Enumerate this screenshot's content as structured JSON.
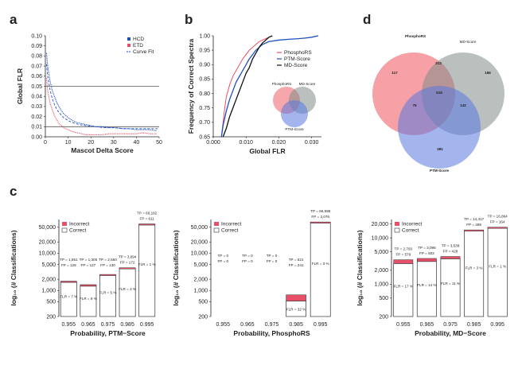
{
  "panel_labels": {
    "a": "a",
    "b": "b",
    "c": "c",
    "d": "d"
  },
  "colors": {
    "hcd": "#1f4fbf",
    "etd": "#e8506a",
    "red": "#e8506a",
    "phospho": "#f38a8f",
    "ptm": "#5a78e0",
    "md": "#7f8c88",
    "dark": "#222222"
  },
  "chart_data": [
    {
      "id": "a",
      "type": "line",
      "xlabel": "Mascot Delta Score",
      "ylabel": "Global FLR",
      "xlim": [
        0,
        50
      ],
      "ylim": [
        0,
        0.1
      ],
      "xticks": [
        0,
        10,
        20,
        30,
        40,
        50
      ],
      "yticks": [
        "0.00",
        "0.01",
        "0.02",
        "0.03",
        "0.04",
        "0.05",
        "0.06",
        "0.07",
        "0.08",
        "0.09",
        "0.10"
      ],
      "hlines": [
        0.05,
        0.01
      ],
      "legend": [
        "HCD",
        "ETD",
        "Curve Fit"
      ],
      "series": [
        {
          "name": "HCD",
          "x": [
            0.5,
            1,
            2,
            3,
            4,
            5,
            6,
            7,
            8,
            10,
            12,
            14,
            16,
            18,
            20,
            22,
            25,
            28,
            31,
            34,
            37,
            40,
            43,
            46,
            49
          ],
          "y": [
            0.083,
            0.07,
            0.056,
            0.046,
            0.04,
            0.034,
            0.03,
            0.026,
            0.023,
            0.019,
            0.016,
            0.014,
            0.013,
            0.012,
            0.011,
            0.01,
            0.01,
            0.009,
            0.009,
            0.008,
            0.008,
            0.007,
            0.007,
            0.007,
            0.006
          ]
        },
        {
          "name": "ETD",
          "x": [
            0.5,
            1,
            2,
            3,
            4,
            5,
            6,
            7,
            8,
            10,
            12,
            14,
            16,
            18,
            20,
            22,
            25,
            28,
            31,
            34,
            37,
            40,
            43,
            46,
            49
          ],
          "y": [
            0.058,
            0.046,
            0.034,
            0.027,
            0.021,
            0.017,
            0.013,
            0.011,
            0.009,
            0.007,
            0.005,
            0.004,
            0.003,
            0.002,
            0.002,
            0.002,
            0.002,
            0.003,
            0.003,
            0.003,
            0.003,
            0.003,
            0.004,
            0.003,
            0.003
          ]
        },
        {
          "name": "Curve Fit",
          "x": [
            0.5,
            1,
            2,
            3,
            4,
            5,
            6,
            8,
            10,
            12,
            15,
            18,
            22,
            26,
            30,
            35,
            40,
            45,
            50
          ],
          "y": [
            0.072,
            0.06,
            0.047,
            0.038,
            0.032,
            0.027,
            0.024,
            0.019,
            0.016,
            0.014,
            0.012,
            0.011,
            0.01,
            0.009,
            0.009,
            0.008,
            0.008,
            0.008,
            0.008
          ]
        }
      ]
    },
    {
      "id": "b",
      "type": "line",
      "xlabel": "Global FLR",
      "ylabel": "Frequency of Correct Spectra",
      "xlim": [
        0,
        0.033
      ],
      "ylim": [
        0.65,
        1.0
      ],
      "xticks": [
        "0.000",
        "0.010",
        "0.020",
        "0.030"
      ],
      "yticks": [
        "0.65",
        "0.70",
        "0.75",
        "0.80",
        "0.85",
        "0.90",
        "0.95",
        "1.00"
      ],
      "legend": [
        "PhosphoRS",
        "PTM-Score",
        "MD-Score"
      ],
      "series": [
        {
          "name": "PhosphoRS",
          "x": [
            0.0025,
            0.003,
            0.0035,
            0.004,
            0.005,
            0.006,
            0.007,
            0.008,
            0.009,
            0.01,
            0.011,
            0.012,
            0.013,
            0.014,
            0.015,
            0.016,
            0.017,
            0.018
          ],
          "y": [
            0.65,
            0.7,
            0.75,
            0.79,
            0.83,
            0.86,
            0.88,
            0.9,
            0.92,
            0.935,
            0.95,
            0.96,
            0.97,
            0.98,
            0.985,
            0.99,
            0.995,
            1.0
          ]
        },
        {
          "name": "PTM-Score",
          "x": [
            0.0025,
            0.003,
            0.004,
            0.005,
            0.006,
            0.007,
            0.008,
            0.009,
            0.01,
            0.011,
            0.012,
            0.013,
            0.015,
            0.017,
            0.02,
            0.023,
            0.026,
            0.028,
            0.03,
            0.032
          ],
          "y": [
            0.65,
            0.69,
            0.74,
            0.78,
            0.81,
            0.84,
            0.86,
            0.88,
            0.9,
            0.92,
            0.935,
            0.95,
            0.97,
            0.98,
            0.985,
            0.988,
            0.99,
            0.992,
            0.995,
            1.0
          ]
        },
        {
          "name": "MD-Score",
          "x": [
            0.003,
            0.004,
            0.005,
            0.006,
            0.007,
            0.008,
            0.009,
            0.01,
            0.011,
            0.012,
            0.013,
            0.014,
            0.015,
            0.016,
            0.017,
            0.018
          ],
          "y": [
            0.65,
            0.68,
            0.72,
            0.75,
            0.78,
            0.81,
            0.84,
            0.87,
            0.89,
            0.92,
            0.94,
            0.96,
            0.975,
            0.985,
            0.995,
            1.0
          ]
        }
      ],
      "inset_venn": {
        "labels": [
          "PhosphoRS",
          "MD-Score",
          "PTM-Score"
        ]
      }
    },
    {
      "id": "c1",
      "type": "bar",
      "xlabel": "Probability, PTM−Score",
      "ylabel": "log₁₀ (# Classifications)",
      "yticks": [
        {
          "v": 200,
          "t": "200"
        },
        {
          "v": 500,
          "t": "500"
        },
        {
          "v": 1000,
          "t": "1,000"
        },
        {
          "v": 2000,
          "t": "2,000"
        },
        {
          "v": 5000,
          "t": "5,000"
        },
        {
          "v": 10000,
          "t": "10,000"
        },
        {
          "v": 20000,
          "t": "20,000"
        },
        {
          "v": 50000,
          "t": "50,000"
        }
      ],
      "ymin": 200,
      "ymax": 80000,
      "categories": [
        "0.955",
        "0.965",
        "0.975",
        "0.985",
        "0.995"
      ],
      "correct": [
        1651,
        1305,
        2560,
        3894,
        60182
      ],
      "incorrect": [
        128,
        127,
        130,
        172,
        611
      ],
      "tp_labels": [
        "TP = 1,651",
        "TP = 1,305",
        "TP = 2,560",
        "TP = 3,894",
        "TP = 60,182"
      ],
      "fp_labels": [
        "FP = 128",
        "FP = 127",
        "FP = 130",
        "FP = 172",
        "FP = 611"
      ],
      "flr_labels": [
        "FLR = 7 %",
        "FLR = 9 %",
        "FLR = 5 %",
        "FLR = 4 %",
        "FLR = 1 %"
      ],
      "legend": [
        "Incorrect",
        "Correct"
      ]
    },
    {
      "id": "c2",
      "type": "bar",
      "xlabel": "Probability, PhosphoRS",
      "ylabel": "log₁₀ (# Classifications)",
      "yticks": [
        {
          "v": 200,
          "t": "200"
        },
        {
          "v": 500,
          "t": "500"
        },
        {
          "v": 1000,
          "t": "1,000"
        },
        {
          "v": 2000,
          "t": "2,000"
        },
        {
          "v": 5000,
          "t": "5,000"
        },
        {
          "v": 10000,
          "t": "10,000"
        },
        {
          "v": 20000,
          "t": "20,000"
        },
        {
          "v": 50000,
          "t": "50,000"
        }
      ],
      "ymin": 200,
      "ymax": 80000,
      "categories": [
        "0.955",
        "0.965",
        "0.975",
        "0.985",
        "0.995"
      ],
      "correct": [
        0,
        0,
        0,
        521,
        66598
      ],
      "incorrect": [
        0,
        0,
        0,
        241,
        2076
      ],
      "tp_labels": [
        "TP = 0",
        "TP = 0",
        "TP = 0",
        "TP = 521",
        "TP = 66,598"
      ],
      "fp_labels": [
        "FP = 0",
        "FP = 0",
        "FP = 0",
        "FP = 241",
        "FP = 2,076"
      ],
      "flr_labels": [
        "",
        "",
        "",
        "FLR = 32 %",
        "FLR = 3 %"
      ],
      "legend": [
        "Incorrect",
        "Correct"
      ]
    },
    {
      "id": "c3",
      "type": "bar",
      "xlabel": "Probability, MD−Score",
      "ylabel": "log₁₀ (# Classifications)",
      "yticks": [
        {
          "v": 200,
          "t": "200"
        },
        {
          "v": 500,
          "t": "500"
        },
        {
          "v": 1000,
          "t": "1,000"
        },
        {
          "v": 2000,
          "t": "2,000"
        },
        {
          "v": 5000,
          "t": "5,000"
        },
        {
          "v": 10000,
          "t": "10,000"
        },
        {
          "v": 20000,
          "t": "20,000"
        }
      ],
      "ymin": 200,
      "ymax": 25000,
      "categories": [
        "0.955",
        "0.965",
        "0.975",
        "0.985",
        "0.995"
      ],
      "correct": [
        2793,
        3095,
        3538,
        14417,
        16864
      ],
      "incorrect": [
        579,
        503,
        428,
        469,
        164
      ],
      "tp_labels": [
        "TP = 2,793",
        "TP = 3,095",
        "TP = 3,538",
        "TP = 14,417",
        "TP = 16,864"
      ],
      "fp_labels": [
        "FP = 579",
        "FP = 503",
        "FP = 428",
        "FP = 469",
        "FP = 164"
      ],
      "flr_labels": [
        "FLR = 17 %",
        "FLR = 14 %",
        "FLR = 11 %",
        "FLR = 3 %",
        "FLR = 1 %"
      ],
      "legend": [
        "Incorrect",
        "Correct"
      ]
    },
    {
      "id": "d",
      "type": "venn",
      "sets": [
        "PhosphoRS",
        "MD-Score",
        "PTM-Score"
      ],
      "regions": {
        "phospho_only": "117",
        "md_only": "186",
        "ptm_only": "381",
        "phospho_md": "313",
        "phospho_ptm": "75",
        "md_ptm": "142",
        "all": "519"
      }
    }
  ]
}
